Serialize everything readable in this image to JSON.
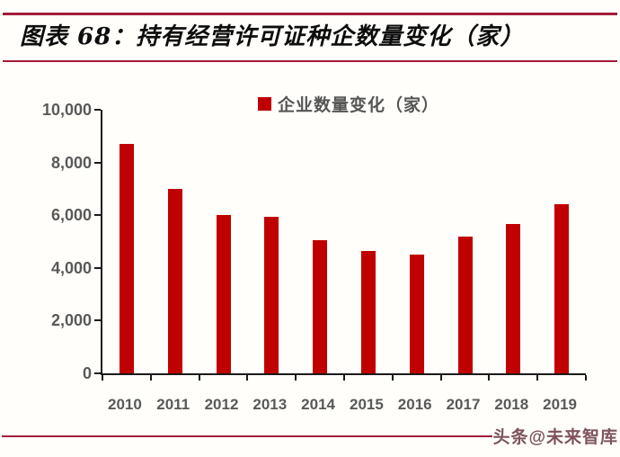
{
  "header": {
    "title": "图表 68：持有经营许可证种企数量变化（家）"
  },
  "footer": {
    "watermark": "头条@未来智库"
  },
  "colors": {
    "rule": "#a11c38",
    "bar": "#C00000",
    "axis": "#1a1a1a",
    "tick_label": "#595959",
    "legend_text": "#555555",
    "title_text": "#0d0d0d",
    "watermark_text": "#7e545c",
    "background": "#fffefa"
  },
  "chart_data": {
    "type": "bar",
    "title": "图表 68：持有经营许可证种企数量变化（家）",
    "legend": [
      {
        "label": "企业数量变化（家）",
        "color": "#C00000"
      }
    ],
    "legend_position": "top-center",
    "categories": [
      "2010",
      "2011",
      "2012",
      "2013",
      "2014",
      "2015",
      "2016",
      "2017",
      "2018",
      "2019"
    ],
    "series": [
      {
        "name": "企业数量变化（家）",
        "values": [
          8700,
          7000,
          6000,
          5950,
          5050,
          4650,
          4500,
          5200,
          5650,
          6400
        ]
      }
    ],
    "xlabel": "",
    "ylabel": "",
    "ylim": [
      0,
      10000
    ],
    "yticks": [
      0,
      2000,
      4000,
      6000,
      8000,
      10000
    ],
    "ytick_labels": [
      "0",
      "2,000",
      "4,000",
      "6,000",
      "8,000",
      "10,000"
    ],
    "grid": false,
    "bar_color": "#C00000"
  }
}
